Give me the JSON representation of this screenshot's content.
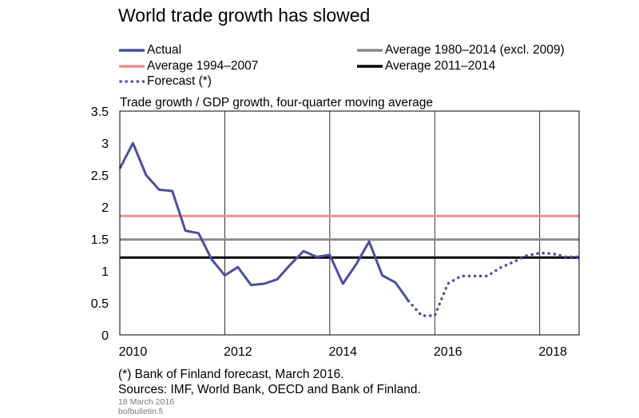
{
  "title": "World trade growth has slowed",
  "legend": [
    {
      "label": "Actual",
      "color": "#4a4f9e",
      "style": "solid"
    },
    {
      "label": "Average 1980–2014 (excl. 2009)",
      "color": "#8c8c8c",
      "style": "solid"
    },
    {
      "label": "Average 1994–2007",
      "color": "#f09090",
      "style": "solid"
    },
    {
      "label": "Average 2011–2014",
      "color": "#000000",
      "style": "solid"
    },
    {
      "label": "Forecast (*)",
      "color": "#4a4f9e",
      "style": "dotted"
    }
  ],
  "chart_data": {
    "type": "line",
    "title": "World trade growth has slowed",
    "subtitle": "Trade growth / GDP growth, four-quarter moving average",
    "xlim": [
      2009.75,
      2018.5
    ],
    "ylim": [
      0,
      3.5
    ],
    "x_ticks": [
      {
        "value": 2010,
        "label": "2010"
      },
      {
        "value": 2012,
        "label": "2012"
      },
      {
        "value": 2014,
        "label": "2014"
      },
      {
        "value": 2016,
        "label": "2016"
      },
      {
        "value": 2018,
        "label": "2018"
      }
    ],
    "y_ticks": [
      {
        "value": 0,
        "label": "0"
      },
      {
        "value": 0.5,
        "label": "0.5"
      },
      {
        "value": 1,
        "label": "1"
      },
      {
        "value": 1.5,
        "label": "1.5"
      },
      {
        "value": 2,
        "label": "2"
      },
      {
        "value": 2.5,
        "label": "2.5"
      },
      {
        "value": 3,
        "label": "3"
      },
      {
        "value": 3.5,
        "label": "3.5"
      }
    ],
    "x_grid": [
      2011.75,
      2013.75,
      2015.75,
      2017.75
    ],
    "y_grid": false,
    "series": [
      {
        "name": "Actual",
        "color": "#4a4f9e",
        "style": "solid",
        "x": [
          2009.75,
          2010,
          2010.25,
          2010.5,
          2010.75,
          2011,
          2011.25,
          2011.5,
          2011.75,
          2012,
          2012.25,
          2012.5,
          2012.75,
          2013,
          2013.25,
          2013.5,
          2013.75,
          2014,
          2014.25,
          2014.5,
          2014.75,
          2015,
          2015.25
        ],
        "y": [
          2.6,
          3.0,
          2.5,
          2.27,
          2.25,
          1.63,
          1.59,
          1.18,
          0.93,
          1.06,
          0.78,
          0.8,
          0.87,
          1.1,
          1.31,
          1.22,
          1.25,
          0.8,
          1.1,
          1.46,
          0.93,
          0.82,
          0.53
        ]
      },
      {
        "name": "Forecast (*)",
        "color": "#4a4f9e",
        "style": "dotted",
        "x": [
          2015.25,
          2015.5,
          2015.75,
          2016,
          2016.25,
          2016.5,
          2016.75,
          2017,
          2017.25,
          2017.5,
          2017.75,
          2018,
          2018.25,
          2018.5
        ],
        "y": [
          0.53,
          0.3,
          0.3,
          0.8,
          0.92,
          0.92,
          0.92,
          1.05,
          1.14,
          1.24,
          1.28,
          1.27,
          1.22,
          1.22
        ]
      },
      {
        "name": "Average 1980–2014 (excl. 2009)",
        "color": "#8c8c8c",
        "style": "solid",
        "x": [
          2009.75,
          2018.5
        ],
        "y": [
          1.49,
          1.49
        ]
      },
      {
        "name": "Average 1994–2007",
        "color": "#f09090",
        "style": "solid",
        "x": [
          2009.75,
          2018.5
        ],
        "y": [
          1.86,
          1.86
        ]
      },
      {
        "name": "Average 2011–2014",
        "color": "#000000",
        "style": "solid",
        "x": [
          2009.75,
          2018.5
        ],
        "y": [
          1.21,
          1.21
        ]
      }
    ]
  },
  "footnotes": {
    "forecast_note": "(*) Bank of Finland forecast, March 2016.",
    "sources": "Sources: IMF, World Bank, OECD and Bank of Finland.",
    "date": "18 March 2016",
    "site": "bofbulletin.fi"
  }
}
